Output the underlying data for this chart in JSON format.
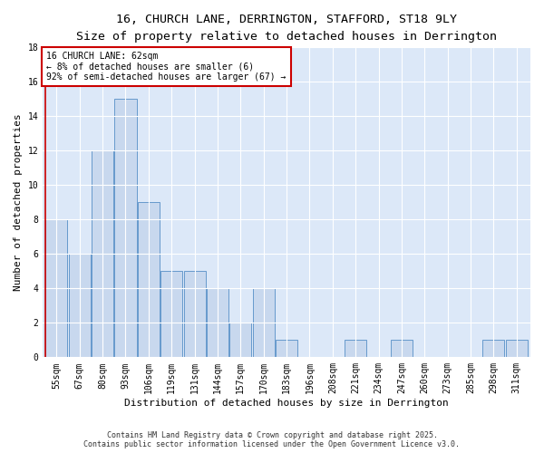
{
  "title": "16, CHURCH LANE, DERRINGTON, STAFFORD, ST18 9LY",
  "subtitle": "Size of property relative to detached houses in Derrington",
  "xlabel": "Distribution of detached houses by size in Derrington",
  "ylabel": "Number of detached properties",
  "categories": [
    "55sqm",
    "67sqm",
    "80sqm",
    "93sqm",
    "106sqm",
    "119sqm",
    "131sqm",
    "144sqm",
    "157sqm",
    "170sqm",
    "183sqm",
    "196sqm",
    "208sqm",
    "221sqm",
    "234sqm",
    "247sqm",
    "260sqm",
    "273sqm",
    "285sqm",
    "298sqm",
    "311sqm"
  ],
  "values": [
    8,
    6,
    12,
    15,
    9,
    5,
    5,
    4,
    2,
    4,
    1,
    0,
    0,
    1,
    0,
    1,
    0,
    0,
    0,
    1,
    1
  ],
  "bar_color": "#c8d8ee",
  "bar_edge_color": "#6699cc",
  "property_line_color": "#cc0000",
  "annotation_text": "16 CHURCH LANE: 62sqm\n← 8% of detached houses are smaller (6)\n92% of semi-detached houses are larger (67) →",
  "annotation_box_color": "#ffffff",
  "annotation_box_edge": "#cc0000",
  "ylim": [
    0,
    18
  ],
  "yticks": [
    0,
    2,
    4,
    6,
    8,
    10,
    12,
    14,
    16,
    18
  ],
  "footer": "Contains HM Land Registry data © Crown copyright and database right 2025.\nContains public sector information licensed under the Open Government Licence v3.0.",
  "background_color": "#dce8f8",
  "title_fontsize": 9.5,
  "subtitle_fontsize": 8.5,
  "axis_label_fontsize": 8,
  "tick_fontsize": 7,
  "annotation_fontsize": 7,
  "footer_fontsize": 6
}
